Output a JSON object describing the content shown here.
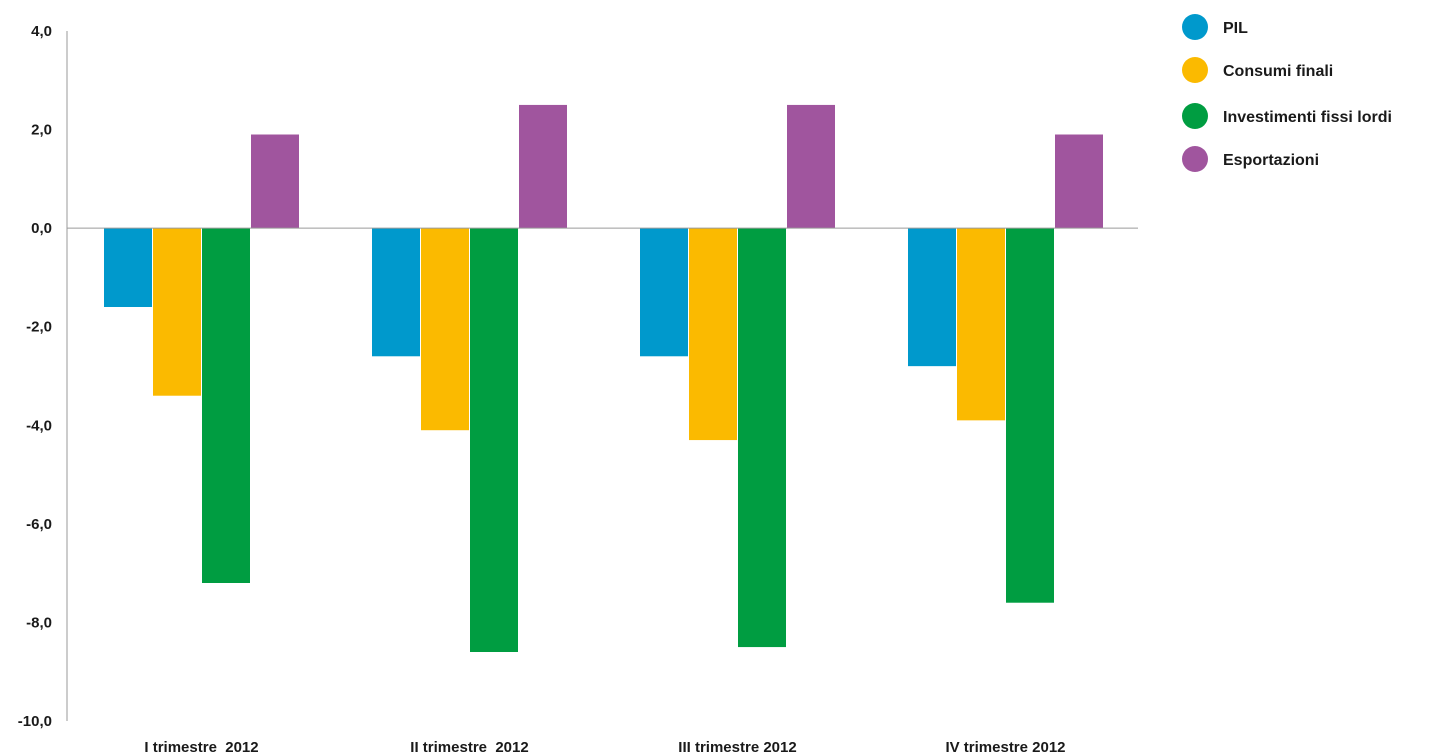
{
  "chart_data": {
    "type": "bar",
    "categories": [
      "I trimestre  2012",
      "II trimestre  2012",
      "III trimestre 2012",
      "IV trimestre 2012"
    ],
    "series": [
      {
        "name": "PIL",
        "color": "#0099CC",
        "values": [
          -1.6,
          -2.6,
          -2.6,
          -2.8
        ]
      },
      {
        "name": "Consumi finali",
        "color": "#FBBA00",
        "values": [
          -3.4,
          -4.1,
          -4.3,
          -3.9
        ]
      },
      {
        "name": "Investimenti fissi lordi",
        "color": "#009D41",
        "values": [
          -7.2,
          -8.6,
          -8.5,
          -7.6
        ]
      },
      {
        "name": "Esportazioni",
        "color": "#A0559E",
        "values": [
          1.9,
          2.5,
          2.5,
          1.9
        ]
      }
    ],
    "yticks": [
      "4,0",
      "2,0",
      "0,0",
      "-2,0",
      "-4,0",
      "-6,0",
      "-8,0",
      "-10,0"
    ],
    "ytick_values": [
      4,
      2,
      0,
      -2,
      -4,
      -6,
      -8,
      -10
    ],
    "ylim": [
      -10,
      4
    ],
    "legend_position": "top-right",
    "grid": false,
    "title": "",
    "xlabel": "",
    "ylabel": ""
  }
}
